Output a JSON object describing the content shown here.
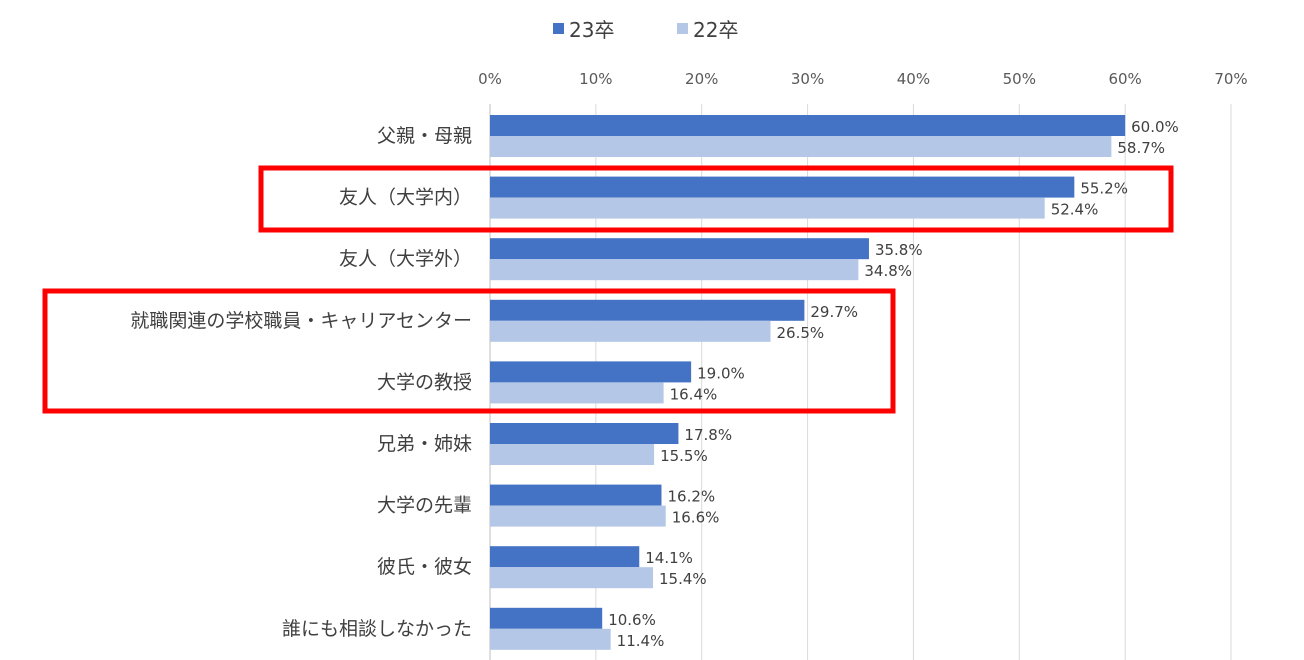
{
  "chart_data": {
    "type": "bar",
    "orientation": "horizontal",
    "title": "",
    "xlabel": "",
    "ylabel": "",
    "xlim": [
      0,
      70
    ],
    "x_ticks": [
      "0%",
      "10%",
      "20%",
      "30%",
      "40%",
      "50%",
      "60%",
      "70%"
    ],
    "x_tick_values": [
      0,
      10,
      20,
      30,
      40,
      50,
      60,
      70
    ],
    "grid": true,
    "legend_position": "top",
    "categories": [
      "父親・母親",
      "友人（大学内）",
      "友人（大学外）",
      "就職関連の学校職員・キャリアセンター",
      "大学の教授",
      "兄弟・姉妹",
      "大学の先輩",
      "彼氏・彼女",
      "誰にも相談しなかった"
    ],
    "series": [
      {
        "name": "23卒",
        "color": "#4472C4",
        "values": [
          60.0,
          55.2,
          35.8,
          29.7,
          19.0,
          17.8,
          16.2,
          14.1,
          10.6
        ],
        "labels": [
          "60.0%",
          "55.2%",
          "35.8%",
          "29.7%",
          "19.0%",
          "17.8%",
          "16.2%",
          "14.1%",
          "10.6%"
        ]
      },
      {
        "name": "22卒",
        "color": "#B4C7E7",
        "values": [
          58.7,
          52.4,
          34.8,
          26.5,
          16.4,
          15.5,
          16.6,
          15.4,
          11.4
        ],
        "labels": [
          "58.7%",
          "52.4%",
          "34.8%",
          "26.5%",
          "16.4%",
          "15.5%",
          "16.6%",
          "15.4%",
          "11.4%"
        ]
      }
    ],
    "highlight_color": "#FF0000",
    "highlights": [
      {
        "categories": [
          "友人（大学内）"
        ]
      },
      {
        "categories": [
          "就職関連の学校職員・キャリアセンター",
          "大学の教授"
        ]
      }
    ]
  }
}
